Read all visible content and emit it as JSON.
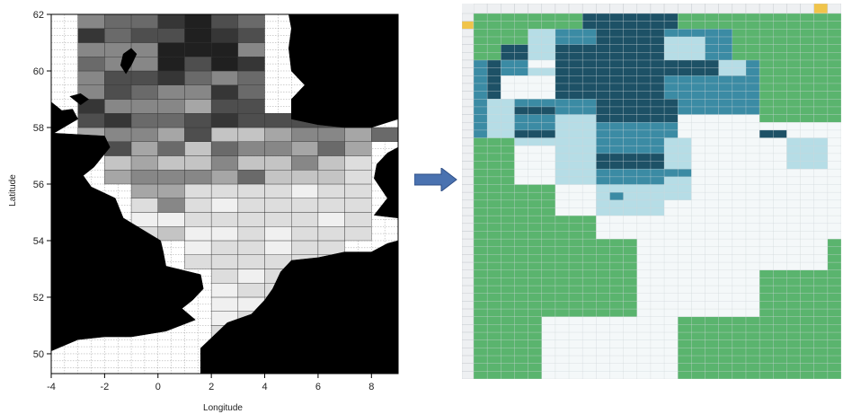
{
  "map": {
    "xlabel": "Longitude",
    "ylabel": "Latitude",
    "x_ticks": [
      "-4",
      "-2",
      "0",
      "2",
      "4",
      "6",
      "8"
    ],
    "y_ticks": [
      "50",
      "52",
      "54",
      "56",
      "58",
      "60",
      "62"
    ],
    "land_color": "#000000",
    "sea_color": "#ffffff",
    "shade_levels": [
      "#f0f0f0",
      "#dddddd",
      "#c4c4c4",
      "#a6a6a6",
      "#878787",
      "#6a6a6a",
      "#4e4e4e",
      "#363636",
      "#202020"
    ]
  },
  "arrow": {
    "color": "#4a72b0",
    "icon": "right-arrow-icon"
  },
  "spreadsheet": {
    "colors": {
      "land": "#5ab46e",
      "empty": "#f4f8f9",
      "light": "#b6dde6",
      "medium": "#3b8ba4",
      "dark": "#1d5166",
      "header": "#eef0f2",
      "header_selected": "#f0c44a"
    }
  }
}
